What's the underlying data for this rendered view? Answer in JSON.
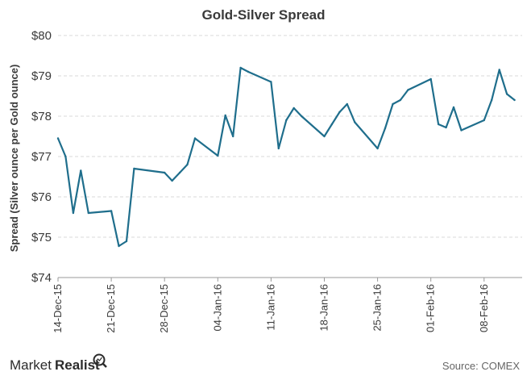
{
  "chart_data": {
    "type": "line",
    "title": "Gold-Silver Spread",
    "ylabel": "Spread (Silver ounce per Gold ounce)",
    "xlabel": "",
    "ylim": [
      74,
      80
    ],
    "ytick_labels": [
      "$74",
      "$75",
      "$76",
      "$77",
      "$78",
      "$79",
      "$80"
    ],
    "xtick_labels": [
      "14-Dec-15",
      "21-Dec-15",
      "28-Dec-15",
      "04-Jan-16",
      "11-Jan-16",
      "18-Jan-16",
      "25-Jan-16",
      "01-Feb-16",
      "08-Feb-16"
    ],
    "grid": true,
    "line_color": "#1f6e8c",
    "series": [
      {
        "x": [
          "2015-12-14",
          "2015-12-15",
          "2015-12-16",
          "2015-12-17",
          "2015-12-18",
          "2015-12-21",
          "2015-12-22",
          "2015-12-23",
          "2015-12-24",
          "2015-12-28",
          "2015-12-29",
          "2015-12-30",
          "2015-12-31",
          "2016-01-01",
          "2016-01-04",
          "2016-01-05",
          "2016-01-06",
          "2016-01-07",
          "2016-01-08",
          "2016-01-11",
          "2016-01-12",
          "2016-01-13",
          "2016-01-14",
          "2016-01-15",
          "2016-01-18",
          "2016-01-19",
          "2016-01-20",
          "2016-01-21",
          "2016-01-22",
          "2016-01-25",
          "2016-01-26",
          "2016-01-27",
          "2016-01-28",
          "2016-01-29",
          "2016-02-01",
          "2016-02-02",
          "2016-02-03",
          "2016-02-04",
          "2016-02-05",
          "2016-02-08",
          "2016-02-09",
          "2016-02-10",
          "2016-02-11",
          "2016-02-12"
        ],
        "values": [
          77.45,
          77.0,
          75.6,
          76.65,
          75.6,
          75.65,
          74.78,
          74.9,
          76.7,
          76.6,
          76.4,
          76.6,
          76.8,
          77.45,
          77.02,
          78.02,
          77.5,
          79.2,
          79.1,
          78.85,
          77.2,
          77.9,
          78.2,
          78.0,
          77.5,
          77.8,
          78.1,
          78.3,
          77.85,
          77.2,
          77.7,
          78.3,
          78.4,
          78.65,
          78.92,
          77.8,
          77.72,
          78.22,
          77.65,
          77.9,
          78.4,
          79.15,
          78.55,
          78.4
        ]
      }
    ]
  },
  "logo": {
    "text_regular": "Market",
    "text_bold": "Realist"
  },
  "source": "Source: COMEX"
}
